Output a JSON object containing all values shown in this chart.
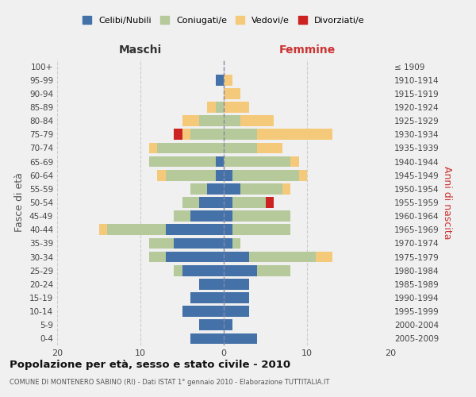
{
  "age_groups": [
    "0-4",
    "5-9",
    "10-14",
    "15-19",
    "20-24",
    "25-29",
    "30-34",
    "35-39",
    "40-44",
    "45-49",
    "50-54",
    "55-59",
    "60-64",
    "65-69",
    "70-74",
    "75-79",
    "80-84",
    "85-89",
    "90-94",
    "95-99",
    "100+"
  ],
  "birth_years": [
    "2005-2009",
    "2000-2004",
    "1995-1999",
    "1990-1994",
    "1985-1989",
    "1980-1984",
    "1975-1979",
    "1970-1974",
    "1965-1969",
    "1960-1964",
    "1955-1959",
    "1950-1954",
    "1945-1949",
    "1940-1944",
    "1935-1939",
    "1930-1934",
    "1925-1929",
    "1920-1924",
    "1915-1919",
    "1910-1914",
    "≤ 1909"
  ],
  "maschi": {
    "celibi": [
      4,
      3,
      5,
      4,
      3,
      5,
      7,
      6,
      7,
      4,
      3,
      2,
      1,
      1,
      0,
      0,
      0,
      0,
      0,
      1,
      0
    ],
    "coniugati": [
      0,
      0,
      0,
      0,
      0,
      1,
      2,
      3,
      7,
      2,
      2,
      2,
      6,
      8,
      8,
      4,
      3,
      1,
      0,
      0,
      0
    ],
    "vedovi": [
      0,
      0,
      0,
      0,
      0,
      0,
      0,
      0,
      1,
      0,
      0,
      0,
      1,
      0,
      1,
      1,
      2,
      1,
      0,
      0,
      0
    ],
    "divorziati": [
      0,
      0,
      0,
      0,
      0,
      0,
      0,
      0,
      0,
      0,
      0,
      0,
      0,
      0,
      0,
      1,
      0,
      0,
      0,
      0,
      0
    ]
  },
  "femmine": {
    "nubili": [
      4,
      1,
      3,
      3,
      3,
      4,
      3,
      1,
      1,
      1,
      1,
      2,
      1,
      0,
      0,
      0,
      0,
      0,
      0,
      0,
      0
    ],
    "coniugate": [
      0,
      0,
      0,
      0,
      0,
      4,
      8,
      1,
      7,
      7,
      4,
      5,
      8,
      8,
      4,
      4,
      2,
      0,
      0,
      0,
      0
    ],
    "vedove": [
      0,
      0,
      0,
      0,
      0,
      0,
      2,
      0,
      0,
      0,
      0,
      1,
      1,
      1,
      3,
      9,
      4,
      3,
      2,
      1,
      0
    ],
    "divorziate": [
      0,
      0,
      0,
      0,
      0,
      0,
      0,
      0,
      0,
      0,
      1,
      0,
      0,
      0,
      0,
      0,
      0,
      0,
      0,
      0,
      0
    ]
  },
  "colors": {
    "celibi": "#4472a8",
    "coniugati": "#b5c99a",
    "vedovi": "#f5c97a",
    "divorziati": "#cc2222"
  },
  "xlim": 20,
  "title": "Popolazione per età, sesso e stato civile - 2010",
  "subtitle": "COMUNE DI MONTENERO SABINO (RI) - Dati ISTAT 1° gennaio 2010 - Elaborazione TUTTITALIA.IT",
  "ylabel_left": "Fasce di età",
  "ylabel_right": "Anni di nascita",
  "xlabel_maschi": "Maschi",
  "xlabel_femmine": "Femmine",
  "bg_color": "#f0f0f0",
  "grid_color": "#cccccc"
}
